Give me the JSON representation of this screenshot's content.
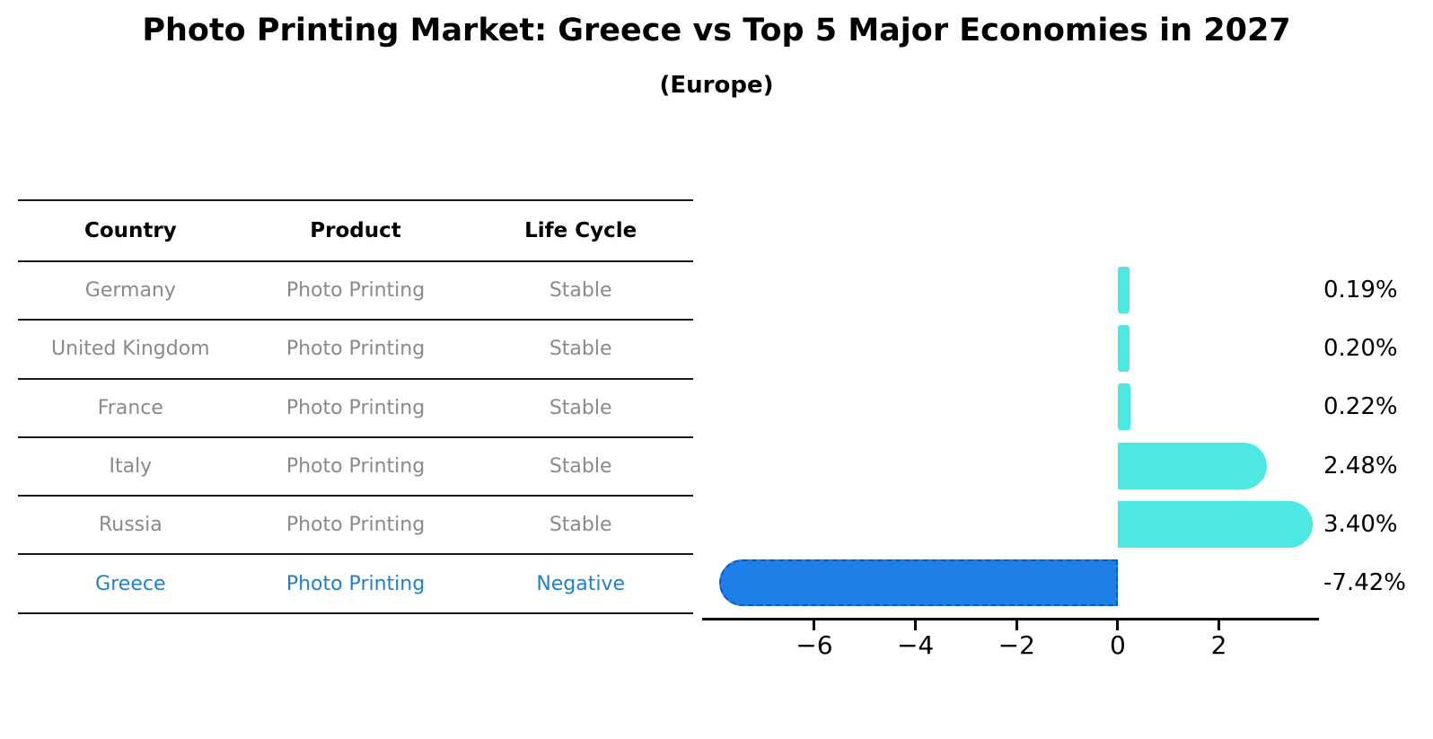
{
  "title": "Photo Printing Market: Greece vs Top 5 Major Economies in 2027",
  "subtitle": "(Europe)",
  "table": {
    "headers": [
      "Country",
      "Product",
      "Life Cycle"
    ],
    "rows": [
      {
        "country": "Germany",
        "product": "Photo Printing",
        "life_cycle": "Stable",
        "highlight": false
      },
      {
        "country": "United Kingdom",
        "product": "Photo Printing",
        "life_cycle": "Stable",
        "highlight": false
      },
      {
        "country": "France",
        "product": "Photo Printing",
        "life_cycle": "Stable",
        "highlight": false
      },
      {
        "country": "Italy",
        "product": "Photo Printing",
        "life_cycle": "Stable",
        "highlight": false
      },
      {
        "country": "Russia",
        "product": "Photo Printing",
        "life_cycle": "Stable",
        "highlight": false
      },
      {
        "country": "Greece",
        "product": "Photo Printing",
        "life_cycle": "Negative",
        "highlight": true
      }
    ]
  },
  "chart_data": {
    "type": "bar",
    "orientation": "horizontal",
    "title": "Photo Printing Market: Greece vs Top 5 Major Economies in 2027 (Europe)",
    "categories": [
      "Germany",
      "United Kingdom",
      "France",
      "Italy",
      "Russia",
      "Greece"
    ],
    "values": [
      0.19,
      0.2,
      0.22,
      2.48,
      3.4,
      -7.42
    ],
    "value_labels": [
      "0.19%",
      "0.20%",
      "0.22%",
      "2.48%",
      "3.40%",
      "-7.42%"
    ],
    "x_ticks": [
      -6,
      -4,
      -2,
      0,
      2
    ],
    "x_tick_labels": [
      "−6",
      "−4",
      "−2",
      "0",
      "2"
    ],
    "xlim": [
      -8.2,
      3.96
    ],
    "grid": false,
    "legend": "none",
    "colors": {
      "positive_bar": "#4de8e1",
      "negative_bar": "#1e7fe8",
      "negative_bar_border": "#0b59c8",
      "highlight_text": "#1f7fd0",
      "muted_text": "#8a8a8a",
      "axis": "#000000"
    }
  }
}
